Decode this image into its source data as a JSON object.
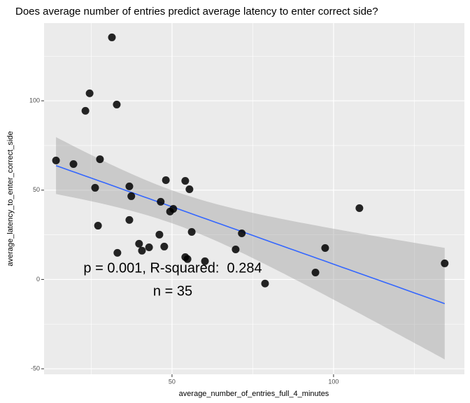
{
  "chart_data": {
    "type": "scatter",
    "title": "Does average number of entries predict average latency to enter correct side?",
    "x_label": "average_number_of_entries_full_4_minutes",
    "y_label": "average_latency_to_enter_correct_side",
    "annotations": [
      "p = 0.001, R-squared:  0.284",
      "n = 35"
    ],
    "x": [
      14.1,
      19.5,
      23.2,
      24.5,
      26.2,
      27.1,
      27.7,
      31.4,
      32.9,
      33.1,
      36.8,
      36.8,
      37.4,
      39.8,
      40.7,
      42.9,
      46.1,
      46.5,
      47.6,
      48.1,
      49.4,
      50.4,
      54.1,
      54.1,
      54.8,
      55.4,
      56.1,
      60.2,
      69.7,
      71.6,
      78.8,
      94.4,
      97.4,
      108.0,
      134.4
    ],
    "values": [
      66.6,
      64.6,
      94.4,
      104.2,
      51.3,
      30.1,
      67.3,
      135.5,
      97.9,
      14.9,
      52.1,
      33.3,
      46.6,
      20.0,
      16.1,
      18.0,
      25.1,
      43.5,
      18.4,
      55.6,
      38.0,
      39.5,
      55.2,
      12.5,
      11.4,
      50.5,
      26.6,
      10.2,
      16.8,
      25.8,
      -2.3,
      3.9,
      17.6,
      39.9,
      9.0
    ],
    "color": "#000000",
    "fit_color": "#3366ff",
    "band_color": "#999999",
    "xlim": [
      10.4,
      140.5
    ],
    "ylim": [
      -53.1,
      143.5
    ],
    "xticks": [
      50,
      100
    ],
    "yticks": [
      -50,
      0,
      50,
      100
    ],
    "xminor": [
      25,
      75,
      125
    ],
    "yminor": [
      -25,
      25,
      75,
      125
    ],
    "grid": true
  }
}
